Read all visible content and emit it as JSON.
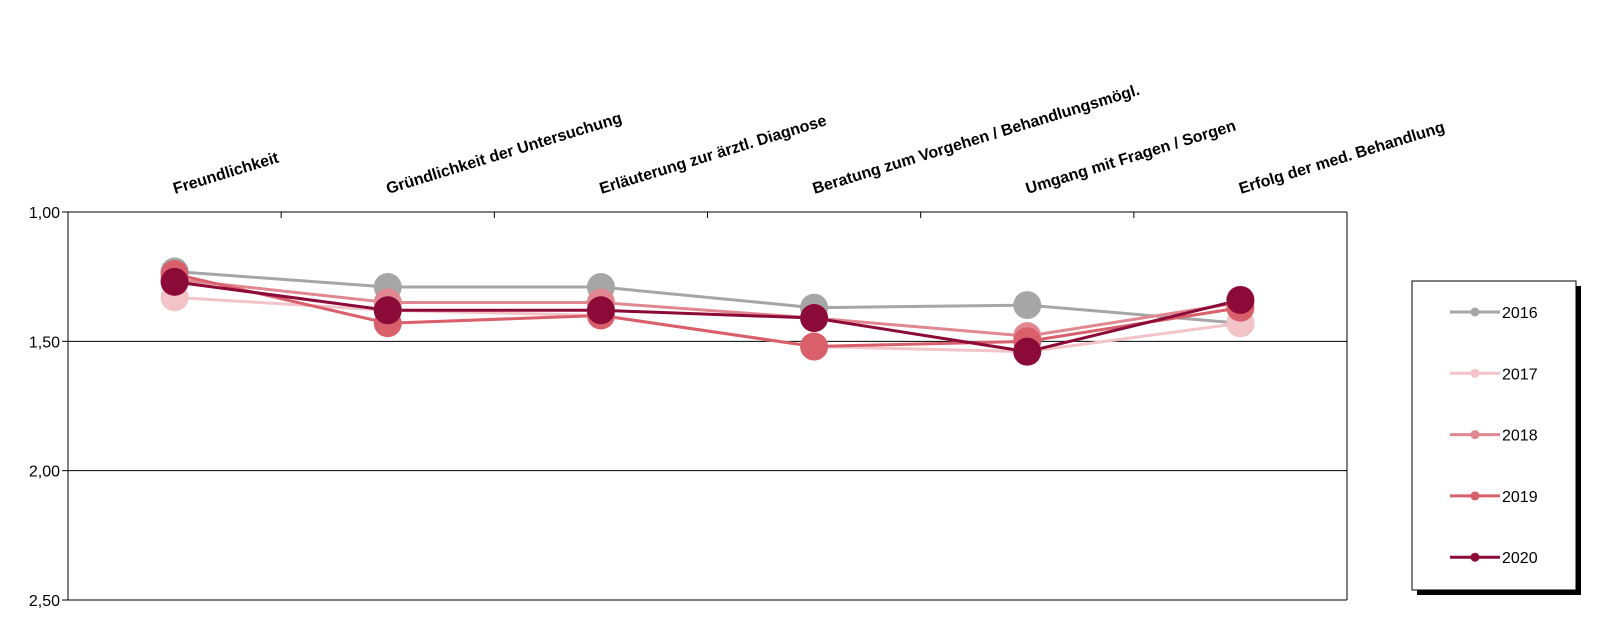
{
  "chart_data": {
    "type": "line",
    "title": "",
    "xlabel": "",
    "ylabel": "",
    "y_inverted": true,
    "ylim": [
      1.0,
      2.5
    ],
    "y_ticks": [
      {
        "value": 1.0,
        "label": "1,00"
      },
      {
        "value": 1.5,
        "label": "1,50"
      },
      {
        "value": 2.0,
        "label": "2,00"
      },
      {
        "value": 2.5,
        "label": "2,50"
      }
    ],
    "grid": true,
    "legend_position": "right",
    "categories": [
      "Freundlichkeit",
      "Gründlichkeit der Untersuchung",
      "Erläuterung zur ärztl. Diagnose",
      "Beratung zum Vorgehen / Behandlungsmögl.",
      "Umgang mit Fragen / Sorgen",
      "Erfolg der med. Behandlung"
    ],
    "series": [
      {
        "name": "2016",
        "color": "#a6a6a6",
        "values": [
          1.23,
          1.29,
          1.29,
          1.37,
          1.36,
          1.43
        ]
      },
      {
        "name": "2017",
        "color": "#f2c4c8",
        "values": [
          1.33,
          1.38,
          1.4,
          1.52,
          1.54,
          1.43
        ]
      },
      {
        "name": "2018",
        "color": "#e08790",
        "values": [
          1.26,
          1.35,
          1.35,
          1.41,
          1.48,
          1.35
        ]
      },
      {
        "name": "2019",
        "color": "#d9606b",
        "values": [
          1.24,
          1.43,
          1.4,
          1.52,
          1.5,
          1.37
        ]
      },
      {
        "name": "2020",
        "color": "#8c0a38",
        "values": [
          1.27,
          1.38,
          1.38,
          1.41,
          1.54,
          1.34
        ]
      }
    ]
  }
}
